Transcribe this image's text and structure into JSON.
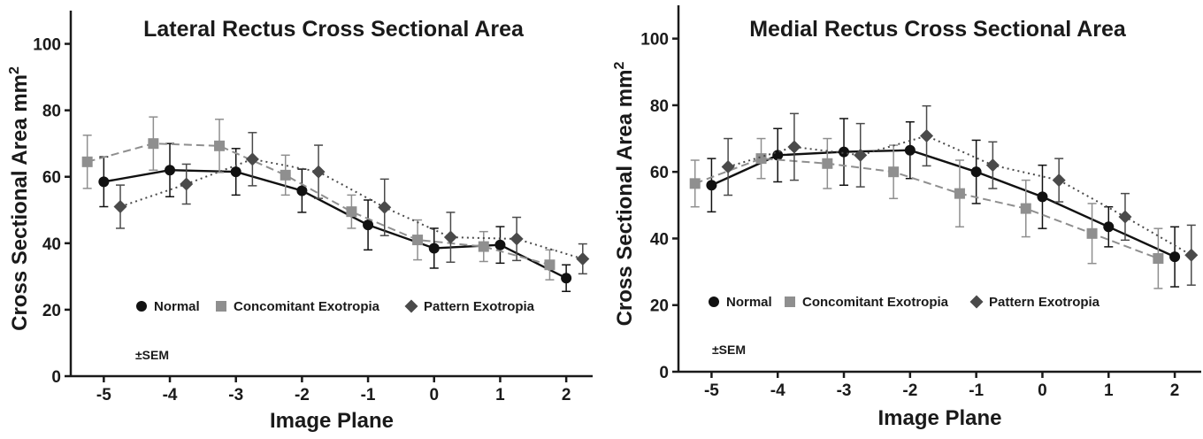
{
  "chart_data": [
    {
      "type": "line",
      "title": "Lateral Rectus Cross Sectional Area",
      "xlabel": "Image Plane",
      "ylabel": "Cross Sectional Area mm",
      "ylabel_sup": "2",
      "xlim": [
        -5.5,
        2.4
      ],
      "ylim": [
        0,
        110
      ],
      "xticks": [
        -5,
        -4,
        -3,
        -2,
        -1,
        0,
        1,
        2
      ],
      "yticks": [
        0,
        20,
        40,
        60,
        80,
        100
      ],
      "note": "±SEM",
      "legend_position": "bottom-center",
      "series": [
        {
          "name": "Normal",
          "marker": "circle",
          "line_style": "solid",
          "color": "#111111",
          "x": [
            -5,
            -4,
            -3,
            -2,
            -1,
            0,
            1,
            2
          ],
          "y": [
            58.5,
            62,
            61.5,
            55.8,
            45.5,
            38.5,
            39.5,
            29.5
          ],
          "err": [
            7.5,
            8,
            7,
            6.5,
            7.5,
            6,
            5.5,
            4
          ]
        },
        {
          "name": "Concomitant Exotropia",
          "marker": "square",
          "line_style": "dashed",
          "color": "#8f8f8f",
          "x": [
            -5.25,
            -4.25,
            -3.25,
            -2.25,
            -1.25,
            -0.25,
            0.75,
            1.75
          ],
          "y": [
            64.5,
            70,
            69.3,
            60.5,
            49.5,
            41,
            39,
            33.5
          ],
          "err": [
            8,
            8,
            8,
            6,
            5,
            6,
            4.5,
            4.5
          ]
        },
        {
          "name": "Pattern Exotropia",
          "marker": "diamond",
          "line_style": "dotted",
          "color": "#4a4a4a",
          "x": [
            -4.75,
            -3.75,
            -2.75,
            -1.75,
            -0.75,
            0.25,
            1.25,
            2.25
          ],
          "y": [
            51,
            57.8,
            65.3,
            61.5,
            50.8,
            41.8,
            41.3,
            35.3
          ],
          "err": [
            6.5,
            6,
            8,
            8,
            8.5,
            7.5,
            6.5,
            4.5
          ]
        }
      ]
    },
    {
      "type": "line",
      "title": "Medial Rectus Cross Sectional Area",
      "xlabel": "Image Plane",
      "ylabel": "Cross Sectional Area mm",
      "ylabel_sup": "2",
      "xlim": [
        -5.5,
        2.4
      ],
      "ylim": [
        0,
        110
      ],
      "xticks": [
        -5,
        -4,
        -3,
        -2,
        -1,
        0,
        1,
        2
      ],
      "yticks": [
        0,
        20,
        40,
        60,
        80,
        100
      ],
      "note": "±SEM",
      "legend_position": "bottom-center",
      "series": [
        {
          "name": "Normal",
          "marker": "circle",
          "line_style": "solid",
          "color": "#111111",
          "x": [
            -5,
            -4,
            -3,
            -2,
            -1,
            0,
            1,
            2
          ],
          "y": [
            56,
            65,
            66,
            66.5,
            60,
            52.5,
            43.5,
            34.5
          ],
          "err": [
            8,
            8,
            10,
            8.5,
            9.5,
            9.5,
            6,
            9
          ]
        },
        {
          "name": "Concomitant Exotropia",
          "marker": "square",
          "line_style": "dashed",
          "color": "#8f8f8f",
          "x": [
            -5.25,
            -4.25,
            -3.25,
            -2.25,
            -1.25,
            -0.25,
            0.75,
            1.75
          ],
          "y": [
            56.5,
            64,
            62.5,
            60,
            53.5,
            49,
            41.5,
            34
          ],
          "err": [
            7,
            6,
            7.5,
            8,
            10,
            8.5,
            9,
            9
          ]
        },
        {
          "name": "Pattern Exotropia",
          "marker": "diamond",
          "line_style": "dotted",
          "color": "#4a4a4a",
          "x": [
            -4.75,
            -3.75,
            -2.75,
            -1.75,
            -0.75,
            0.25,
            1.25,
            2.25
          ],
          "y": [
            61.5,
            67.5,
            65,
            70.8,
            62,
            57.5,
            46.5,
            35
          ],
          "err": [
            8.5,
            10,
            9.5,
            9,
            7,
            6.5,
            7,
            9
          ]
        }
      ]
    }
  ]
}
